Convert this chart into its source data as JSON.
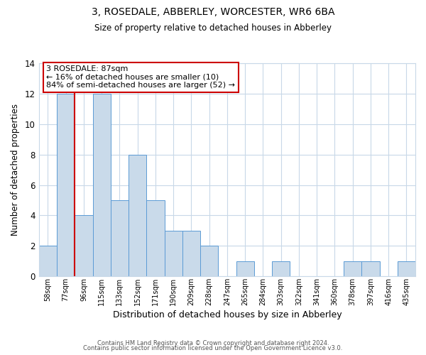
{
  "title": "3, ROSEDALE, ABBERLEY, WORCESTER, WR6 6BA",
  "subtitle": "Size of property relative to detached houses in Abberley",
  "xlabel": "Distribution of detached houses by size in Abberley",
  "ylabel": "Number of detached properties",
  "bar_labels": [
    "58sqm",
    "77sqm",
    "96sqm",
    "115sqm",
    "133sqm",
    "152sqm",
    "171sqm",
    "190sqm",
    "209sqm",
    "228sqm",
    "247sqm",
    "265sqm",
    "284sqm",
    "303sqm",
    "322sqm",
    "341sqm",
    "360sqm",
    "378sqm",
    "397sqm",
    "416sqm",
    "435sqm"
  ],
  "bar_values": [
    2,
    12,
    4,
    12,
    5,
    8,
    5,
    3,
    3,
    2,
    0,
    1,
    0,
    1,
    0,
    0,
    0,
    1,
    1,
    0,
    1
  ],
  "bar_color": "#c9daea",
  "bar_edge_color": "#5b9bd5",
  "ylim": [
    0,
    14
  ],
  "yticks": [
    0,
    2,
    4,
    6,
    8,
    10,
    12,
    14
  ],
  "vline_x_index": 1,
  "vline_color": "#cc0000",
  "annotation_text": "3 ROSEDALE: 87sqm\n← 16% of detached houses are smaller (10)\n84% of semi-detached houses are larger (52) →",
  "annotation_box_color": "#ffffff",
  "annotation_box_edge": "#cc0000",
  "footer_line1": "Contains HM Land Registry data © Crown copyright and database right 2024.",
  "footer_line2": "Contains public sector information licensed under the Open Government Licence v3.0.",
  "background_color": "#ffffff",
  "grid_color": "#c8d8e8",
  "title_fontsize": 10,
  "subtitle_fontsize": 8.5,
  "ylabel_fontsize": 8.5,
  "xlabel_fontsize": 9
}
